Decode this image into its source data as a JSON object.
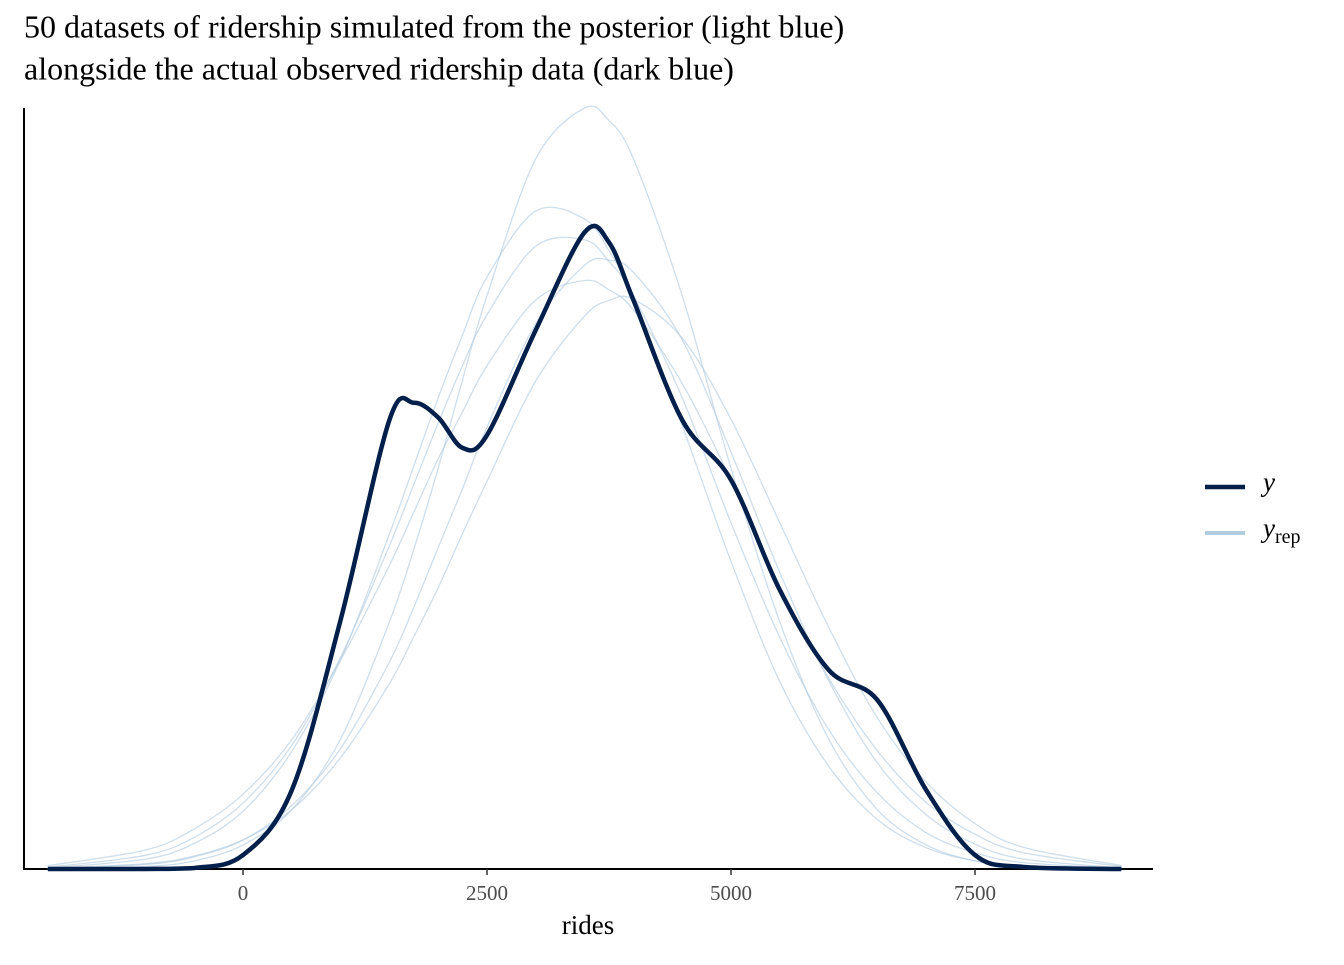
{
  "chart_data": {
    "type": "density-overlay",
    "title": [
      "50 datasets of ridership simulated from the posterior (light blue)",
      "alongside the actual observed ridership data (dark blue)"
    ],
    "x_label": "rides",
    "xlim": [
      -2244,
      9324
    ],
    "xticks": [
      0,
      2500,
      5000,
      7500
    ],
    "ylim": [
      0,
      0.0003
    ],
    "x": [
      -2000,
      -1000,
      -500,
      0,
      500,
      1000,
      1500,
      1750,
      2000,
      2250,
      2500,
      3000,
      3500,
      3750,
      4000,
      4500,
      5000,
      5500,
      6000,
      6500,
      7000,
      7500,
      8000,
      9000
    ],
    "series": [
      {
        "name": "y",
        "color": "#011f4b",
        "values": [
          0,
          0,
          4e-07,
          5.5e-06,
          3.11e-05,
          9.82e-05,
          0.000177,
          0.0001838,
          0.000178,
          0.000166,
          0.000171,
          0.0002125,
          0.000251,
          0.000247,
          0.0002243,
          0.000177,
          0.0001534,
          0.00011,
          7.85e-05,
          6.66e-05,
          3.11e-05,
          5.5e-06,
          8e-07,
          0
        ]
      },
      {
        "name": "y",
        "subscript": "rep",
        "color": "#b3cde0",
        "replicates": [
          [
            1e-07,
            1e-06,
            3.2e-06,
            9.5e-06,
            2.34e-05,
            5.13e-05,
            9.74e-05,
            0.000126,
            0.000158,
            0.000193,
            0.000226,
            0.00028,
            0.0003,
            0.000295,
            0.00028,
            0.000226,
            0.000158,
            9.74e-05,
            5.13e-05,
            2.34e-05,
            9.5e-06,
            3.2e-06,
            1e-06,
            1e-07
          ],
          [
            7e-07,
            5.4e-06,
            1.25e-05,
            2.6e-05,
            4.88e-05,
            8.35e-05,
            0.0001275,
            0.0001516,
            0.0001758,
            0.0001985,
            0.0002185,
            0.0002455,
            0.000248,
            0.0002395,
            0.000226,
            0.0001858,
            0.0001365,
            9.13e-05,
            5.5e-05,
            3e-05,
            1.43e-05,
            6.4e-06,
            2.5e-06,
            3e-07
          ],
          [
            2e-07,
            1.8e-06,
            4.8e-06,
            1.14e-05,
            2.5e-05,
            4.75e-05,
            8.16e-05,
            0.0001032,
            0.0001267,
            0.00015,
            0.0001742,
            0.000215,
            0.000238,
            0.00024,
            0.0002352,
            0.0002086,
            0.0001644,
            0.0001169,
            7.44e-05,
            4.18e-05,
            2.14e-05,
            9.8e-06,
            3.9e-06,
            5e-07
          ],
          [
            4e-07,
            3.9e-06,
            1.01e-05,
            2.28e-05,
            4.64e-05,
            8.25e-05,
            0.000132,
            0.0001589,
            0.0001858,
            0.0002106,
            0.0002334,
            0.0002594,
            0.0002562,
            0.0002437,
            0.0002253,
            0.0001748,
            0.0001213,
            7.39e-05,
            4.06e-05,
            1.95e-05,
            8.4e-06,
            3.2e-06,
            1.1e-06,
            1e-07
          ],
          [
            2e-07,
            2.1e-06,
            5.1e-06,
            1.15e-05,
            2.34e-05,
            4.39e-05,
            7.31e-05,
            9.16e-05,
            0.0001109,
            0.0001323,
            0.0001528,
            0.0001924,
            0.000218,
            0.0002241,
            0.0002246,
            0.0002093,
            0.0001773,
            0.0001365,
            9.54e-05,
            5.96e-05,
            3.42e-05,
            1.79e-05,
            8.5e-06,
            1.4e-06
          ],
          [
            1.3e-06,
            7.5e-06,
            1.58e-05,
            2.95e-05,
            5.1e-05,
            8.24e-05,
            0.0001197,
            0.0001407,
            0.0001617,
            0.0001803,
            0.0001984,
            0.0002243,
            0.000232,
            0.0002283,
            0.0002204,
            0.0001914,
            0.0001534,
            0.0001116,
            7.53e-05,
            4.66e-05,
            2.62e-05,
            1.37e-05,
            6.4e-06,
            1e-06
          ]
        ]
      }
    ],
    "legend": "right"
  }
}
